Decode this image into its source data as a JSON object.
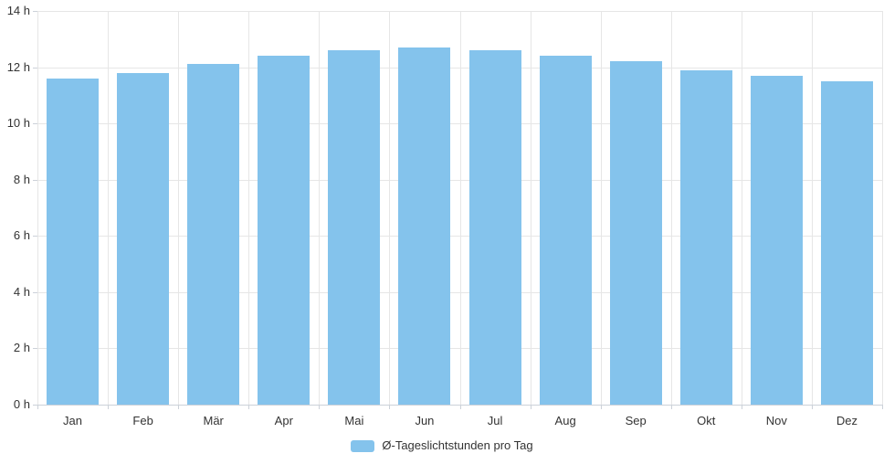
{
  "chart_data": {
    "type": "bar",
    "title": "",
    "xlabel": "",
    "ylabel": "",
    "categories": [
      "Jan",
      "Feb",
      "Mär",
      "Apr",
      "Mai",
      "Jun",
      "Jul",
      "Aug",
      "Sep",
      "Okt",
      "Nov",
      "Dez"
    ],
    "series": [
      {
        "name": "Ø-Tageslichtstunden pro Tag",
        "values": [
          11.6,
          11.8,
          12.1,
          12.4,
          12.6,
          12.7,
          12.6,
          12.4,
          12.2,
          11.9,
          11.7,
          11.5
        ]
      }
    ],
    "ylim": [
      0,
      14
    ],
    "ytick_step": 2,
    "ytick_suffix": " h",
    "grid": true,
    "legend_position": "bottom-center"
  },
  "legend": {
    "label": "Ø-Tageslichtstunden pro Tag"
  },
  "colors": {
    "bar": "#84C3EC",
    "grid": "#e6e6e6",
    "axis": "#ccd1d9",
    "text": "#333333"
  }
}
